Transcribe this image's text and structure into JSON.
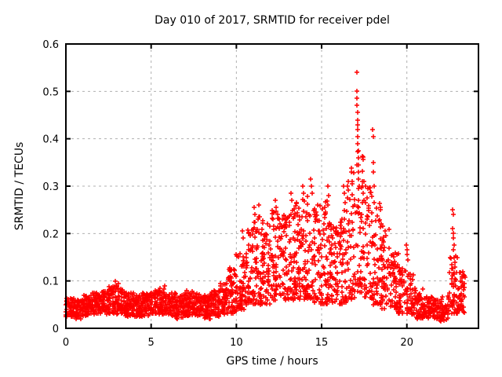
{
  "chart_data": {
    "type": "scatter",
    "title": "Day 010 of 2017, SRMTID for receiver pdel",
    "xlabel": "GPS time / hours",
    "ylabel": "SRMTID / TECUs",
    "xlim": [
      0,
      24.2
    ],
    "ylim": [
      0,
      0.6
    ],
    "xticks": [
      0,
      5,
      10,
      15,
      20
    ],
    "xtick_labels": [
      "0",
      "5",
      "10",
      "15",
      "20"
    ],
    "yticks": [
      0,
      0.1,
      0.2,
      0.3,
      0.4,
      0.5,
      0.6
    ],
    "ytick_labels": [
      "0",
      "0.1",
      "0.2",
      "0.3",
      "0.4",
      "0.5",
      "0.6"
    ],
    "grid": true,
    "grid_style": "dashed",
    "legend": "none",
    "marker": "plus",
    "marker_color": "#ff0000",
    "grid_color": "#b0b0b0",
    "axis_color": "#000000",
    "background_color": "#ffffff",
    "seed": 20170110,
    "description": "Dense 30-s SRMTID scatter: quiet band ~0.02-0.08 TECU from 0-9.5 h, daytime hump ~0.05-0.30 TECU from 10-18 h, sharp spike to 0.54 TECU near 17.1 h, secondary column to 0.42 near 18.0 h, decay to ~0.03 by 21-22 h, late spike to ~0.25 near 22.7 h, data ends ~23.4 h",
    "band_profile": [
      {
        "x0": 0.0,
        "x1": 0.5,
        "n": 60,
        "lo": 0.025,
        "hi": 0.065,
        "bias": 1.0
      },
      {
        "x0": 0.5,
        "x1": 1.0,
        "n": 60,
        "lo": 0.02,
        "hi": 0.06,
        "bias": 1.0
      },
      {
        "x0": 1.0,
        "x1": 1.5,
        "n": 60,
        "lo": 0.025,
        "hi": 0.07,
        "bias": 1.0
      },
      {
        "x0": 1.5,
        "x1": 2.0,
        "n": 60,
        "lo": 0.03,
        "hi": 0.075,
        "bias": 1.0
      },
      {
        "x0": 2.0,
        "x1": 2.5,
        "n": 60,
        "lo": 0.03,
        "hi": 0.08,
        "bias": 1.1
      },
      {
        "x0": 2.5,
        "x1": 3.0,
        "n": 60,
        "lo": 0.03,
        "hi": 0.09,
        "bias": 1.2
      },
      {
        "x0": 3.0,
        "x1": 3.5,
        "n": 60,
        "lo": 0.03,
        "hi": 0.085,
        "bias": 1.2
      },
      {
        "x0": 3.5,
        "x1": 4.0,
        "n": 60,
        "lo": 0.025,
        "hi": 0.075,
        "bias": 1.0
      },
      {
        "x0": 4.0,
        "x1": 4.5,
        "n": 60,
        "lo": 0.025,
        "hi": 0.07,
        "bias": 1.0
      },
      {
        "x0": 4.5,
        "x1": 5.0,
        "n": 60,
        "lo": 0.025,
        "hi": 0.075,
        "bias": 1.0
      },
      {
        "x0": 5.0,
        "x1": 5.5,
        "n": 60,
        "lo": 0.03,
        "hi": 0.08,
        "bias": 1.1
      },
      {
        "x0": 5.5,
        "x1": 6.0,
        "n": 60,
        "lo": 0.03,
        "hi": 0.085,
        "bias": 1.2
      },
      {
        "x0": 6.0,
        "x1": 6.5,
        "n": 60,
        "lo": 0.025,
        "hi": 0.075,
        "bias": 1.1
      },
      {
        "x0": 6.5,
        "x1": 7.0,
        "n": 60,
        "lo": 0.02,
        "hi": 0.07,
        "bias": 1.0
      },
      {
        "x0": 7.0,
        "x1": 7.5,
        "n": 60,
        "lo": 0.025,
        "hi": 0.08,
        "bias": 1.1
      },
      {
        "x0": 7.5,
        "x1": 8.0,
        "n": 60,
        "lo": 0.025,
        "hi": 0.075,
        "bias": 1.1
      },
      {
        "x0": 8.0,
        "x1": 8.5,
        "n": 60,
        "lo": 0.02,
        "hi": 0.07,
        "bias": 1.0
      },
      {
        "x0": 8.5,
        "x1": 9.0,
        "n": 60,
        "lo": 0.025,
        "hi": 0.08,
        "bias": 1.1
      },
      {
        "x0": 9.0,
        "x1": 9.5,
        "n": 60,
        "lo": 0.03,
        "hi": 0.095,
        "bias": 1.2
      },
      {
        "x0": 9.5,
        "x1": 10.0,
        "n": 58,
        "lo": 0.03,
        "hi": 0.13,
        "bias": 1.3
      },
      {
        "x0": 10.0,
        "x1": 10.5,
        "n": 55,
        "lo": 0.04,
        "hi": 0.18,
        "bias": 1.4
      },
      {
        "x0": 10.5,
        "x1": 11.0,
        "n": 55,
        "lo": 0.05,
        "hi": 0.21,
        "bias": 1.3
      },
      {
        "x0": 11.0,
        "x1": 11.5,
        "n": 55,
        "lo": 0.05,
        "hi": 0.24,
        "bias": 1.3
      },
      {
        "x0": 11.5,
        "x1": 12.0,
        "n": 55,
        "lo": 0.05,
        "hi": 0.23,
        "bias": 1.3
      },
      {
        "x0": 12.0,
        "x1": 12.5,
        "n": 55,
        "lo": 0.06,
        "hi": 0.25,
        "bias": 1.3
      },
      {
        "x0": 12.5,
        "x1": 13.0,
        "n": 55,
        "lo": 0.06,
        "hi": 0.24,
        "bias": 1.2
      },
      {
        "x0": 13.0,
        "x1": 13.5,
        "n": 55,
        "lo": 0.06,
        "hi": 0.26,
        "bias": 1.3
      },
      {
        "x0": 13.5,
        "x1": 14.0,
        "n": 55,
        "lo": 0.06,
        "hi": 0.28,
        "bias": 1.4
      },
      {
        "x0": 14.0,
        "x1": 14.5,
        "n": 55,
        "lo": 0.06,
        "hi": 0.29,
        "bias": 1.5
      },
      {
        "x0": 14.5,
        "x1": 15.0,
        "n": 55,
        "lo": 0.05,
        "hi": 0.26,
        "bias": 1.5
      },
      {
        "x0": 15.0,
        "x1": 15.5,
        "n": 55,
        "lo": 0.05,
        "hi": 0.27,
        "bias": 1.5
      },
      {
        "x0": 15.5,
        "x1": 16.0,
        "n": 55,
        "lo": 0.05,
        "hi": 0.23,
        "bias": 1.4
      },
      {
        "x0": 16.0,
        "x1": 16.5,
        "n": 55,
        "lo": 0.05,
        "hi": 0.27,
        "bias": 1.4
      },
      {
        "x0": 16.5,
        "x1": 17.0,
        "n": 50,
        "lo": 0.06,
        "hi": 0.34,
        "bias": 1.5
      },
      {
        "x0": 17.0,
        "x1": 17.5,
        "n": 50,
        "lo": 0.07,
        "hi": 0.38,
        "bias": 1.5
      },
      {
        "x0": 17.5,
        "x1": 18.0,
        "n": 50,
        "lo": 0.06,
        "hi": 0.3,
        "bias": 1.5
      },
      {
        "x0": 18.0,
        "x1": 18.5,
        "n": 50,
        "lo": 0.05,
        "hi": 0.28,
        "bias": 1.6
      },
      {
        "x0": 18.5,
        "x1": 19.0,
        "n": 48,
        "lo": 0.04,
        "hi": 0.22,
        "bias": 1.6
      },
      {
        "x0": 19.0,
        "x1": 19.5,
        "n": 48,
        "lo": 0.04,
        "hi": 0.16,
        "bias": 1.4
      },
      {
        "x0": 19.5,
        "x1": 20.0,
        "n": 45,
        "lo": 0.03,
        "hi": 0.14,
        "bias": 1.4
      },
      {
        "x0": 20.0,
        "x1": 20.5,
        "n": 45,
        "lo": 0.03,
        "hi": 0.12,
        "bias": 1.4
      },
      {
        "x0": 20.5,
        "x1": 21.0,
        "n": 45,
        "lo": 0.02,
        "hi": 0.09,
        "bias": 1.2
      },
      {
        "x0": 21.0,
        "x1": 21.5,
        "n": 45,
        "lo": 0.02,
        "hi": 0.07,
        "bias": 1.1
      },
      {
        "x0": 21.5,
        "x1": 22.0,
        "n": 45,
        "lo": 0.015,
        "hi": 0.06,
        "bias": 1.0
      },
      {
        "x0": 22.0,
        "x1": 22.5,
        "n": 45,
        "lo": 0.015,
        "hi": 0.07,
        "bias": 1.1
      },
      {
        "x0": 22.5,
        "x1": 23.0,
        "n": 50,
        "lo": 0.03,
        "hi": 0.16,
        "bias": 1.5
      },
      {
        "x0": 23.0,
        "x1": 23.4,
        "n": 40,
        "lo": 0.03,
        "hi": 0.12,
        "bias": 1.3
      }
    ],
    "outliers": [
      [
        2.9,
        0.1
      ],
      [
        3.1,
        0.095
      ],
      [
        5.8,
        0.09
      ],
      [
        9.9,
        0.115
      ],
      [
        10.35,
        0.205
      ],
      [
        10.4,
        0.19
      ],
      [
        11.05,
        0.255
      ],
      [
        11.1,
        0.24
      ],
      [
        11.3,
        0.26
      ],
      [
        11.35,
        0.235
      ],
      [
        12.3,
        0.27
      ],
      [
        12.35,
        0.255
      ],
      [
        12.4,
        0.24
      ],
      [
        13.2,
        0.285
      ],
      [
        13.25,
        0.27
      ],
      [
        13.9,
        0.3
      ],
      [
        13.95,
        0.285
      ],
      [
        14.35,
        0.315
      ],
      [
        14.4,
        0.3
      ],
      [
        14.45,
        0.285
      ],
      [
        15.35,
        0.3
      ],
      [
        15.4,
        0.28
      ],
      [
        16.3,
        0.3
      ],
      [
        16.35,
        0.285
      ],
      [
        16.75,
        0.33
      ],
      [
        16.8,
        0.31
      ],
      [
        17.05,
        0.54
      ],
      [
        17.05,
        0.5
      ],
      [
        17.08,
        0.485
      ],
      [
        17.08,
        0.47
      ],
      [
        17.1,
        0.455
      ],
      [
        17.1,
        0.44
      ],
      [
        17.1,
        0.43
      ],
      [
        17.12,
        0.42
      ],
      [
        17.12,
        0.405
      ],
      [
        17.12,
        0.39
      ],
      [
        17.15,
        0.375
      ],
      [
        17.15,
        0.36
      ],
      [
        17.15,
        0.345
      ],
      [
        17.18,
        0.33
      ],
      [
        17.18,
        0.315
      ],
      [
        17.2,
        0.3
      ],
      [
        17.4,
        0.3
      ],
      [
        17.45,
        0.285
      ],
      [
        17.5,
        0.27
      ],
      [
        18.0,
        0.42
      ],
      [
        18.02,
        0.405
      ],
      [
        18.05,
        0.35
      ],
      [
        18.05,
        0.33
      ],
      [
        18.08,
        0.3
      ],
      [
        18.45,
        0.25
      ],
      [
        18.5,
        0.22
      ],
      [
        19.95,
        0.175
      ],
      [
        20.0,
        0.165
      ],
      [
        20.0,
        0.155
      ],
      [
        20.05,
        0.145
      ],
      [
        22.7,
        0.25
      ],
      [
        22.72,
        0.24
      ],
      [
        22.7,
        0.21
      ],
      [
        22.72,
        0.2
      ],
      [
        22.74,
        0.19
      ],
      [
        22.76,
        0.175
      ],
      [
        22.75,
        0.165
      ],
      [
        22.78,
        0.15
      ],
      [
        22.8,
        0.14
      ],
      [
        22.82,
        0.13
      ]
    ]
  }
}
